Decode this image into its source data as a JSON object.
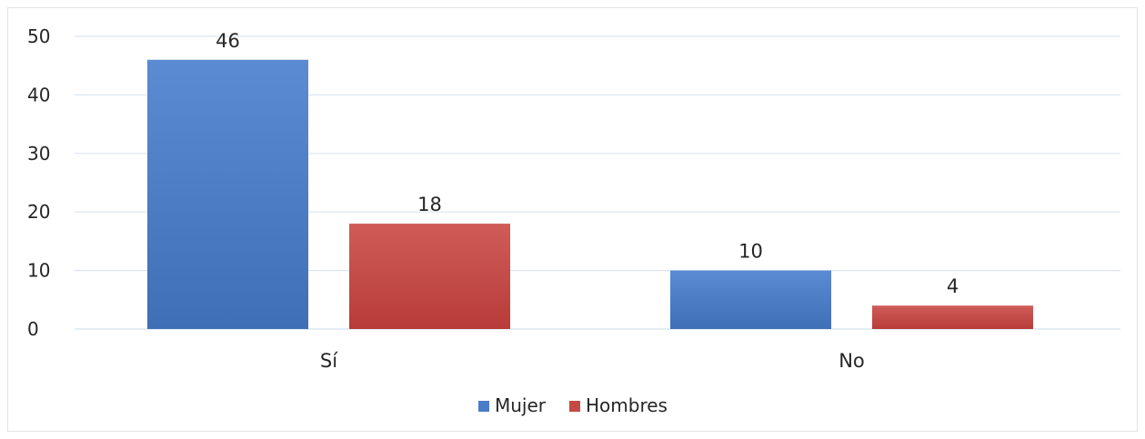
{
  "chart_data": {
    "type": "bar",
    "title": "",
    "xlabel": "",
    "ylabel": "",
    "categories": [
      "Sí",
      "No"
    ],
    "series": [
      {
        "name": "Mujer",
        "values": [
          46,
          10
        ],
        "color": "#4a7cc7"
      },
      {
        "name": "Hombres",
        "values": [
          18,
          4
        ],
        "color": "#c54945"
      }
    ],
    "ylim": [
      0,
      50
    ],
    "yticks": [
      0,
      10,
      20,
      30,
      40,
      50
    ],
    "grid": true,
    "gridline_color": "#dbe5f1",
    "legend": "bottom",
    "data_labels": true
  }
}
